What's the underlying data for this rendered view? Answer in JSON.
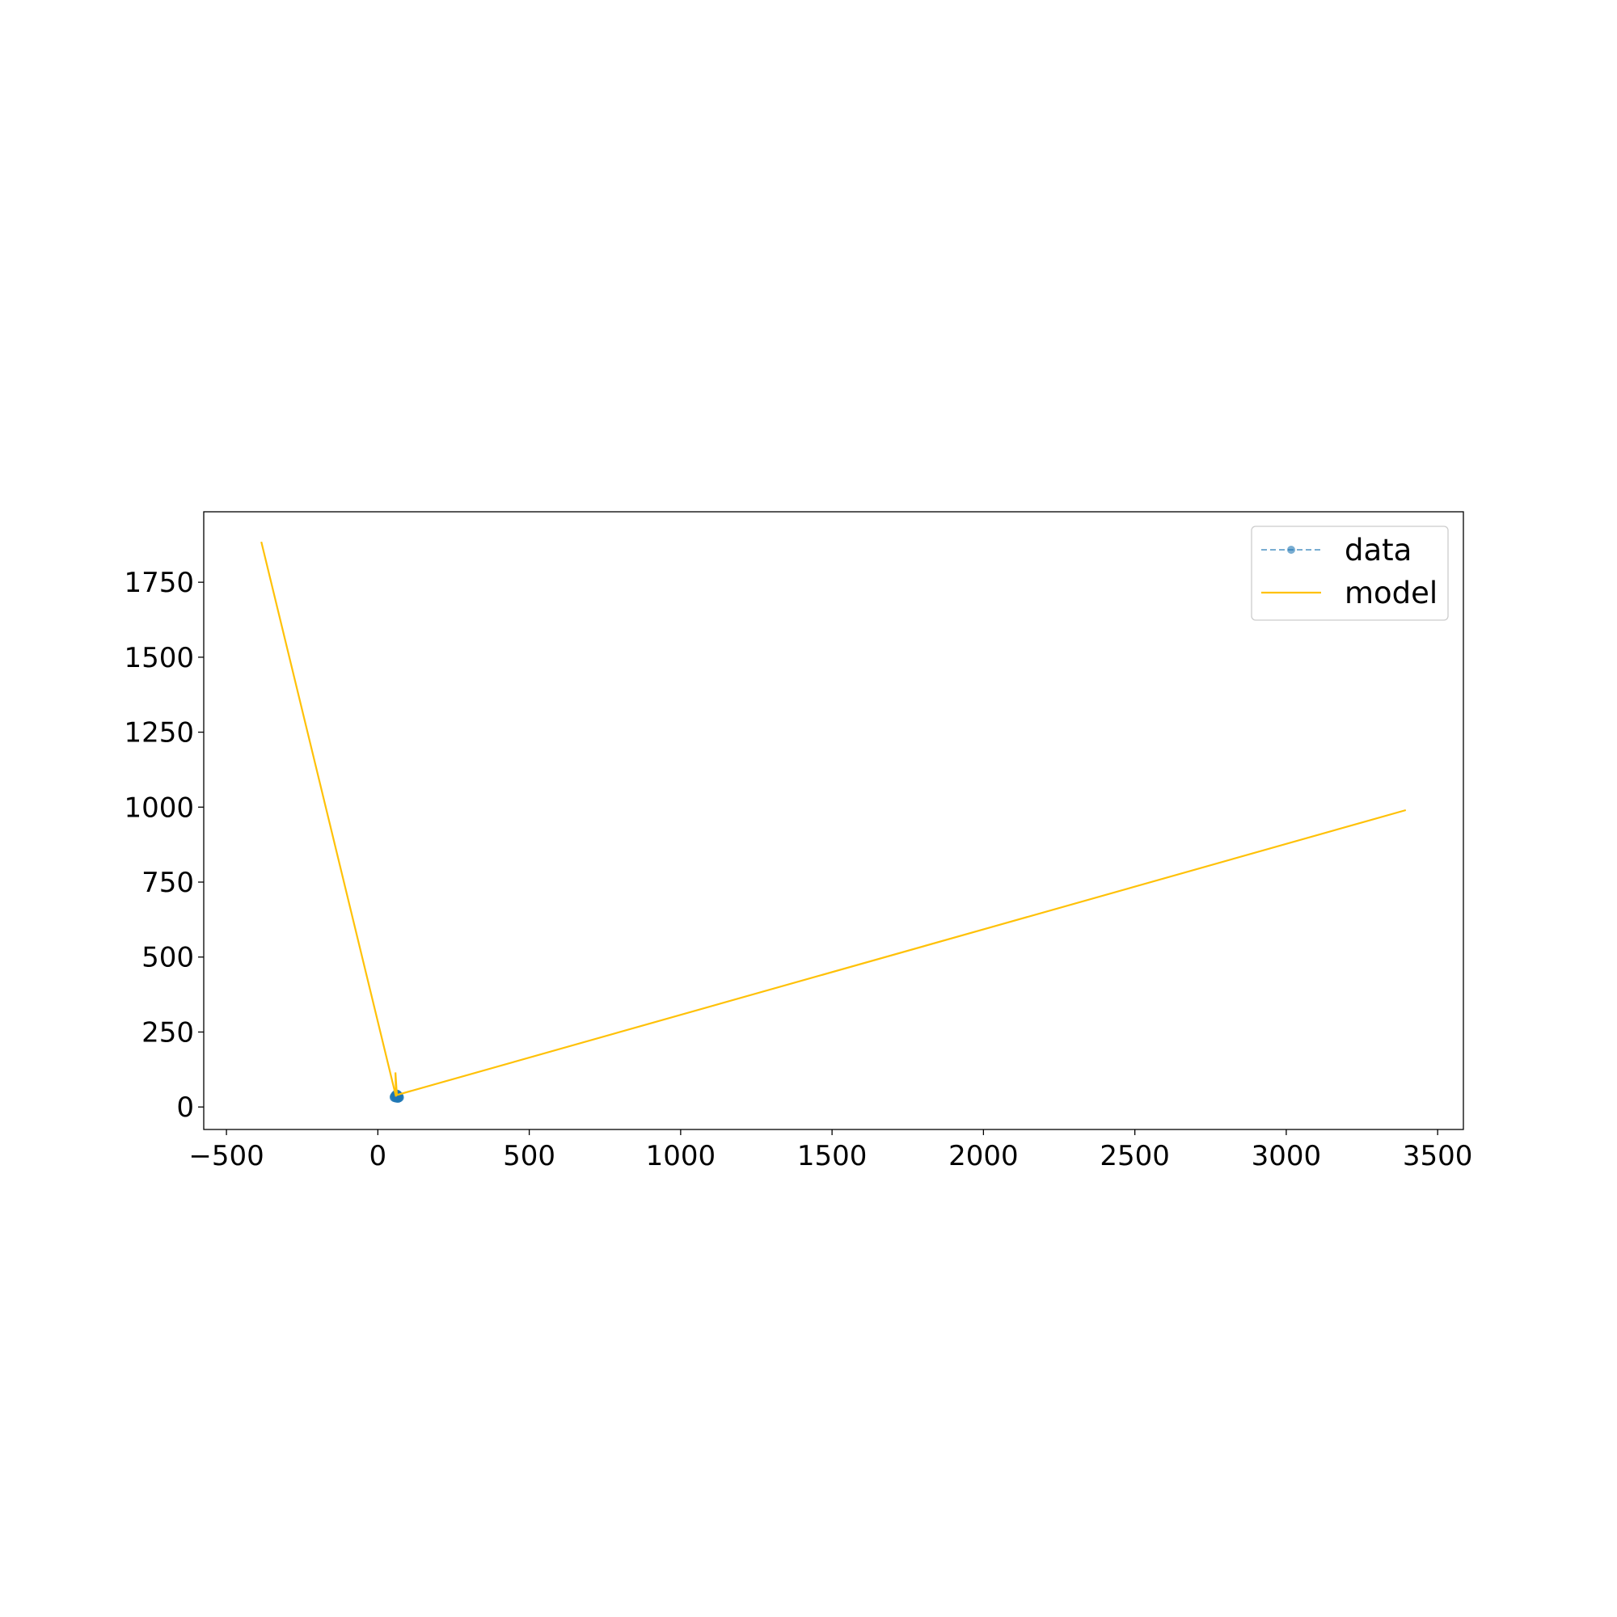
{
  "chart_data": {
    "type": "line",
    "title": "",
    "xlabel": "",
    "ylabel": "",
    "xlim": [
      -575,
      3585
    ],
    "ylim": [
      -75,
      1985
    ],
    "xticks": [
      -500,
      0,
      500,
      1000,
      1500,
      2000,
      2500,
      3000,
      3500
    ],
    "xtick_labels": [
      "−500",
      "0",
      "500",
      "1000",
      "1500",
      "2000",
      "2500",
      "3000",
      "3500"
    ],
    "yticks": [
      0,
      250,
      500,
      750,
      1000,
      1250,
      1500,
      1750
    ],
    "ytick_labels": [
      "0",
      "250",
      "500",
      "750",
      "1000",
      "1250",
      "1500",
      "1750"
    ],
    "grid": false,
    "legend": {
      "placement": "top-right",
      "entries": [
        "data",
        "model"
      ]
    },
    "series": [
      {
        "name": "data",
        "style": "dashed-with-markers",
        "color": "#1f77b4",
        "x": [
          55,
          58,
          62,
          65,
          68,
          70,
          66,
          60
        ],
        "y": [
          33,
          38,
          42,
          40,
          36,
          32,
          30,
          31
        ]
      },
      {
        "name": "model",
        "style": "solid",
        "color": "#ffc107",
        "x": [
          -385,
          60,
          58,
          63,
          3395
        ],
        "y": [
          1885,
          35,
          115,
          40,
          990
        ]
      }
    ]
  }
}
